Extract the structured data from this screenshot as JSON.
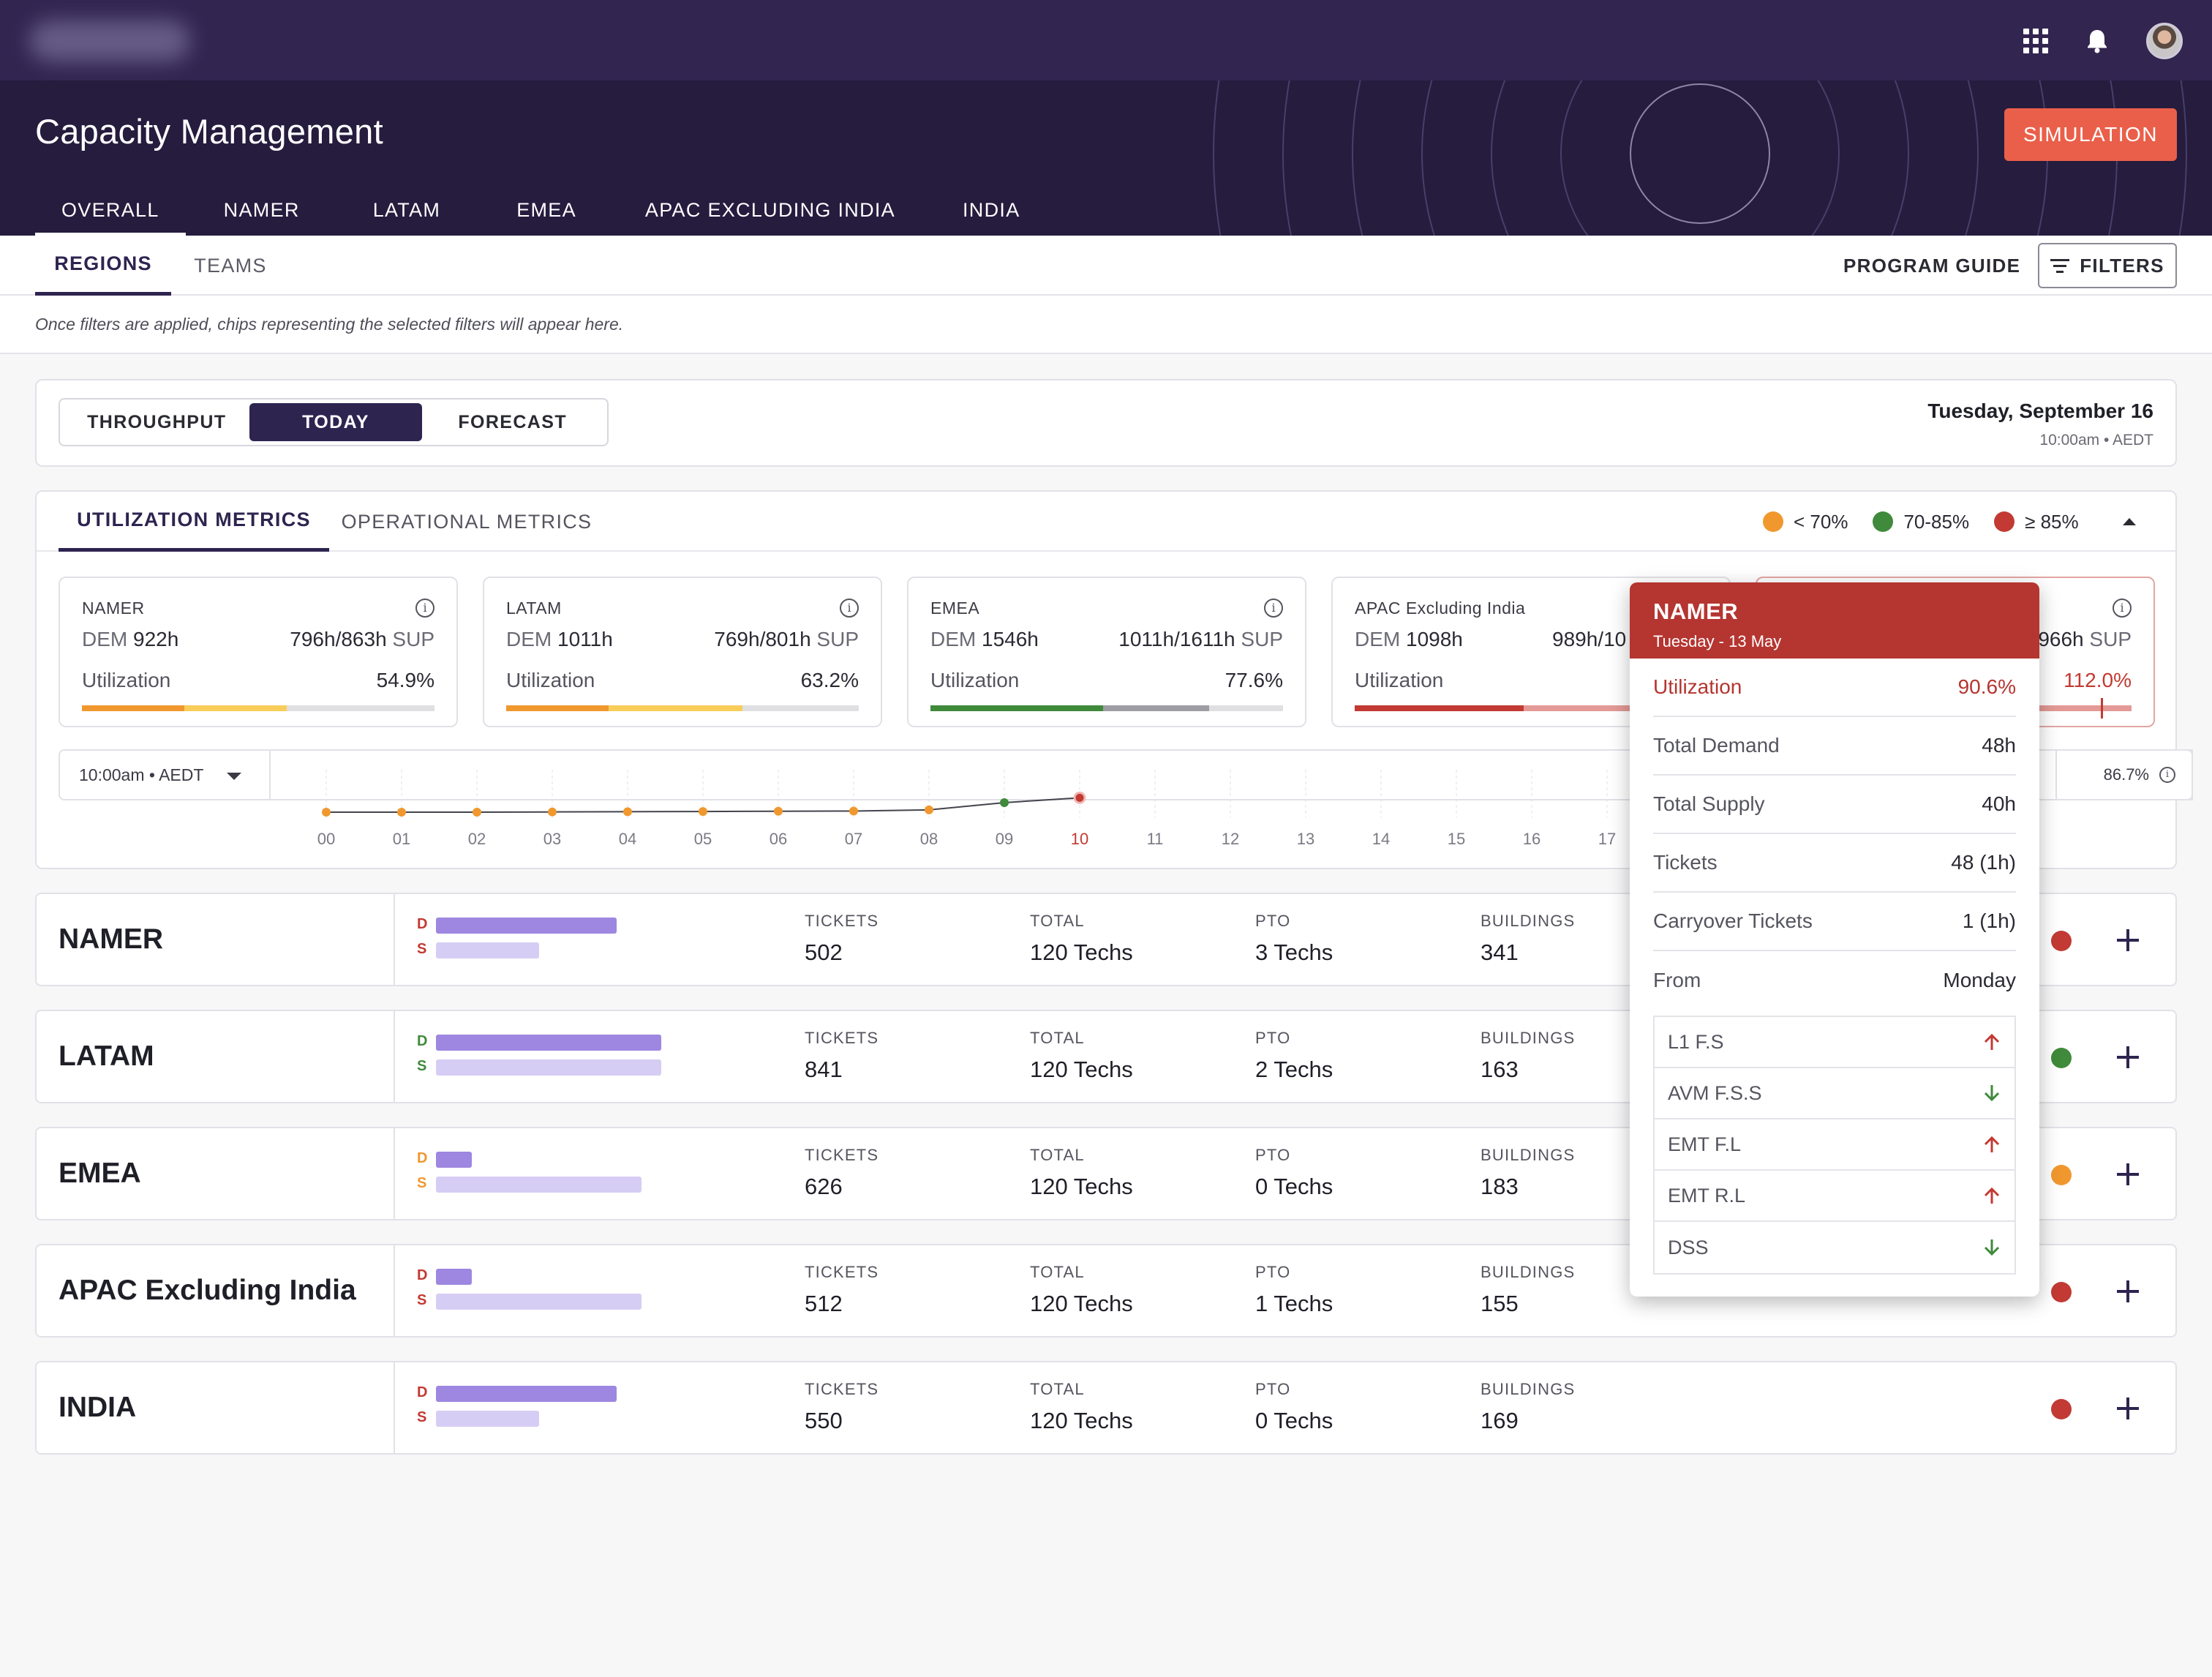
{
  "app": {
    "title": "Capacity Management",
    "simulation_label": "SIMULATION"
  },
  "region_tabs": [
    "OVERALL",
    "NAMER",
    "LATAM",
    "EMEA",
    "APAC EXCLUDING INDIA",
    "INDIA"
  ],
  "sub_tabs": {
    "regions": "REGIONS",
    "teams": "TEAMS"
  },
  "actions": {
    "program_guide": "PROGRAM GUIDE",
    "filters": "FILTERS"
  },
  "filter_hint": "Once filters are applied, chips representing the selected filters will appear here.",
  "view_toggle": {
    "throughput": "THROUGHPUT",
    "today": "TODAY",
    "forecast": "FORECAST"
  },
  "date": {
    "main": "Tuesday, September 16",
    "sub": "10:00am • AEDT"
  },
  "metric_tabs": {
    "utilization": "UTILIZATION METRICS",
    "operational": "OPERATIONAL METRICS"
  },
  "legend": [
    {
      "label": "< 70%",
      "color": "#f0982e"
    },
    {
      "label": "70-85%",
      "color": "#3f8a3b"
    },
    {
      "label": "≥ 85%",
      "color": "#c23a33"
    }
  ],
  "metric_cards": [
    {
      "name": "NAMER",
      "dem_label": "DEM",
      "dem": "922h",
      "sup": "796h/863h",
      "sup_label": "SUP",
      "util_label": "Utilization",
      "util": "54.9%"
    },
    {
      "name": "LATAM",
      "dem_label": "DEM",
      "dem": "1011h",
      "sup": "769h/801h",
      "sup_label": "SUP",
      "util_label": "Utilization",
      "util": "63.2%"
    },
    {
      "name": "EMEA",
      "dem_label": "DEM",
      "dem": "1546h",
      "sup": "1011h/1611h",
      "sup_label": "SUP",
      "util_label": "Utilization",
      "util": "77.6%"
    },
    {
      "name": "APAC Excluding India",
      "dem_label": "DEM",
      "dem": "1098h",
      "sup": "989h/10",
      "sup_label": "",
      "util_label": "Utilization",
      "util": ""
    },
    {
      "name": "",
      "dem_label": "",
      "dem": "",
      "sup": "966h",
      "sup_label": "SUP",
      "util_label": "",
      "util": "112.0%"
    }
  ],
  "timeline": {
    "time_select": "10:00am • AEDT",
    "value": "86.7%",
    "current_hour": "10",
    "hours": [
      "00",
      "01",
      "02",
      "03",
      "04",
      "05",
      "06",
      "07",
      "08",
      "09",
      "10",
      "11",
      "12",
      "13",
      "14",
      "15",
      "16",
      "17"
    ]
  },
  "chart_data": {
    "type": "line",
    "x": [
      "00",
      "01",
      "02",
      "03",
      "04",
      "05",
      "06",
      "07",
      "08",
      "09",
      "10"
    ],
    "series": [
      {
        "values": [
          55,
          55,
          55,
          55.5,
          56,
          56.5,
          57,
          57.5,
          60,
          76,
          86.7
        ]
      }
    ],
    "point_colors": [
      "#f0982e",
      "#f0982e",
      "#f0982e",
      "#f0982e",
      "#f0982e",
      "#f0982e",
      "#f0982e",
      "#f0982e",
      "#f0982e",
      "#3f8a3b",
      "#c23a33"
    ]
  },
  "regions": [
    {
      "name": "NAMER",
      "d_pct": 65,
      "s_pct": 37,
      "d_color": "#c23a33",
      "s_color": "#c23a33",
      "tickets": "502",
      "total": "120 Techs",
      "pto": "3 Techs",
      "buildings": "341",
      "status": "#c23a33"
    },
    {
      "name": "LATAM",
      "d_pct": 81,
      "s_pct": 81,
      "d_color": "#3f8a3b",
      "s_color": "#3f8a3b",
      "tickets": "841",
      "total": "120 Techs",
      "pto": "2 Techs",
      "buildings": "163",
      "status": "#3f8a3b"
    },
    {
      "name": "EMEA",
      "d_pct": 13,
      "s_pct": 74,
      "d_color": "#f0982e",
      "s_color": "#f0982e",
      "tickets": "626",
      "total": "120 Techs",
      "pto": "0 Techs",
      "buildings": "183",
      "status": "#f0982e"
    },
    {
      "name": "APAC Excluding India",
      "d_pct": 13,
      "s_pct": 74,
      "d_color": "#c23a33",
      "s_color": "#c23a33",
      "tickets": "512",
      "total": "120 Techs",
      "pto": "1 Techs",
      "buildings": "155",
      "status": "#c23a33"
    },
    {
      "name": "INDIA",
      "d_pct": 65,
      "s_pct": 37,
      "d_color": "#c23a33",
      "s_color": "#c23a33",
      "tickets": "550",
      "total": "120 Techs",
      "pto": "0 Techs",
      "buildings": "169",
      "status": "#c23a33"
    }
  ],
  "row_labels": {
    "d": "D",
    "s": "S",
    "tickets": "TICKETS",
    "total": "TOTAL",
    "pto": "PTO",
    "buildings": "BUILDINGS"
  },
  "popup": {
    "title": "NAMER",
    "subtitle": "Tuesday - 13 May",
    "rows": [
      {
        "label": "Utilization",
        "value": "90.6%"
      },
      {
        "label": "Total Demand",
        "value": "48h"
      },
      {
        "label": "Total Supply",
        "value": "40h"
      },
      {
        "label": "Tickets",
        "value": "48 (1h)"
      },
      {
        "label": "Carryover Tickets",
        "value": "1 (1h)"
      },
      {
        "label": "From",
        "value": "Monday"
      }
    ],
    "items": [
      {
        "label": "L1 F.S",
        "trend": "up"
      },
      {
        "label": "AVM F.S.S",
        "trend": "down"
      },
      {
        "label": "EMT F.L",
        "trend": "up"
      },
      {
        "label": "EMT R.L",
        "trend": "up"
      },
      {
        "label": "DSS",
        "trend": "down"
      }
    ]
  }
}
